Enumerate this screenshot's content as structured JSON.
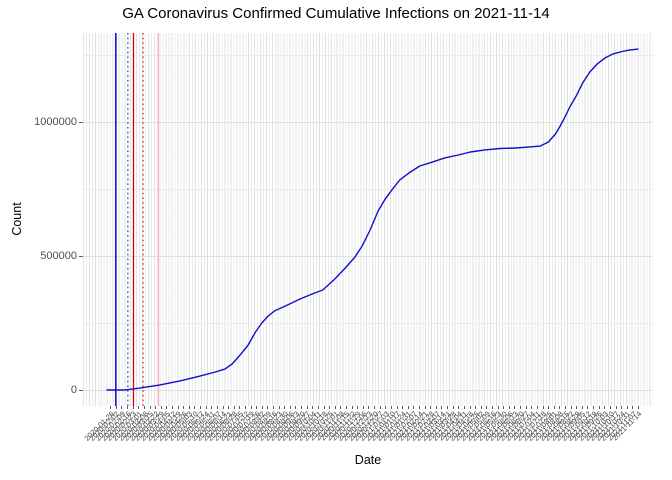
{
  "title": "GA Coronavirus Confirmed Cumulative Infections on 2021-11-14",
  "x_axis": {
    "label": "Date",
    "tick_labels": [
      "2020-01-26",
      "2020-02-02",
      "2020-02-09",
      "2020-02-16",
      "2020-02-23",
      "2020-03-01",
      "2020-03-08",
      "2020-03-15",
      "2020-03-22",
      "2020-03-29",
      "2020-04-05",
      "2020-04-12",
      "2020-04-19",
      "2020-04-26",
      "2020-05-03",
      "2020-05-10",
      "2020-05-17",
      "2020-05-24",
      "2020-05-31",
      "2020-06-07",
      "2020-06-14",
      "2020-06-21",
      "2020-06-28",
      "2020-07-05",
      "2020-07-12",
      "2020-07-19",
      "2020-07-26",
      "2020-08-02",
      "2020-08-09",
      "2020-08-16",
      "2020-08-23",
      "2020-08-30",
      "2020-09-06",
      "2020-09-13",
      "2020-09-20",
      "2020-09-27",
      "2020-10-04",
      "2020-10-11",
      "2020-10-18",
      "2020-10-25",
      "2020-11-01",
      "2020-11-08",
      "2020-11-15",
      "2020-11-22",
      "2020-11-29",
      "2020-12-06",
      "2020-12-13",
      "2020-12-20",
      "2020-12-27",
      "2021-01-03",
      "2021-01-10",
      "2021-01-17",
      "2021-01-24",
      "2021-01-31",
      "2021-02-07",
      "2021-02-14",
      "2021-02-21",
      "2021-02-28",
      "2021-03-07",
      "2021-03-14",
      "2021-03-21",
      "2021-03-28",
      "2021-04-04",
      "2021-04-11",
      "2021-04-18",
      "2021-04-25",
      "2021-05-02",
      "2021-05-09",
      "2021-05-16",
      "2021-05-23",
      "2021-05-30",
      "2021-06-06",
      "2021-06-13",
      "2021-06-20",
      "2021-06-27",
      "2021-07-04",
      "2021-07-11",
      "2021-07-18",
      "2021-07-25",
      "2021-08-01",
      "2021-08-08",
      "2021-08-15",
      "2021-08-22",
      "2021-08-29",
      "2021-09-05",
      "2021-09-12",
      "2021-09-19",
      "2021-09-26",
      "2021-10-03",
      "2021-10-10",
      "2021-10-17",
      "2021-10-24",
      "2021-10-31",
      "2021-11-07",
      "2021-11-14"
    ]
  },
  "y_axis": {
    "label": "Count",
    "tick_labels": [
      "0",
      "500000",
      "1000000"
    ],
    "tick_values": [
      0,
      500000,
      1000000
    ]
  },
  "chart_data": {
    "type": "line",
    "title": "GA Coronavirus Confirmed Cumulative Infections on 2021-11-14",
    "xlabel": "Date",
    "ylabel": "Count",
    "x_domain": [
      "2020-01-22",
      "2021-11-14"
    ],
    "ylim": [
      0,
      1332000
    ],
    "grid": true,
    "legend": "none",
    "background": "#ffffff",
    "y_major_gridlines": [
      0,
      500000,
      1000000
    ],
    "y_minor_gridlines": [
      250000,
      750000,
      1250000
    ],
    "series": [
      {
        "name": "cumulative-confirmed-infections",
        "color": "#1010cb",
        "width": 1.4,
        "points": [
          [
            "2020-01-22",
            0
          ],
          [
            "2020-02-13",
            0
          ],
          [
            "2020-03-03",
            7000
          ],
          [
            "2020-03-28",
            19000
          ],
          [
            "2020-04-22",
            34000
          ],
          [
            "2020-05-17",
            52000
          ],
          [
            "2020-06-05",
            67000
          ],
          [
            "2020-06-17",
            78000
          ],
          [
            "2020-06-26",
            97000
          ],
          [
            "2020-07-06",
            131000
          ],
          [
            "2020-07-16",
            168000
          ],
          [
            "2020-07-25",
            216000
          ],
          [
            "2020-08-02",
            250000
          ],
          [
            "2020-08-10",
            276000
          ],
          [
            "2020-08-18",
            295000
          ],
          [
            "2020-08-31",
            313000
          ],
          [
            "2020-09-19",
            340000
          ],
          [
            "2020-10-07",
            362000
          ],
          [
            "2020-10-17",
            373000
          ],
          [
            "2020-11-01",
            414000
          ],
          [
            "2020-11-14",
            455000
          ],
          [
            "2020-11-26",
            496000
          ],
          [
            "2020-12-05",
            537000
          ],
          [
            "2020-12-15",
            597000
          ],
          [
            "2020-12-25",
            668000
          ],
          [
            "2021-01-03",
            713000
          ],
          [
            "2021-01-11",
            746000
          ],
          [
            "2021-01-21",
            784000
          ],
          [
            "2021-02-03",
            813000
          ],
          [
            "2021-02-15",
            836000
          ],
          [
            "2021-03-03",
            851000
          ],
          [
            "2021-03-18",
            866000
          ],
          [
            "2021-04-04",
            877000
          ],
          [
            "2021-04-19",
            888000
          ],
          [
            "2021-05-07",
            896000
          ],
          [
            "2021-05-26",
            901000
          ],
          [
            "2021-06-14",
            903000
          ],
          [
            "2021-07-02",
            907000
          ],
          [
            "2021-07-15",
            910000
          ],
          [
            "2021-07-25",
            925000
          ],
          [
            "2021-08-03",
            955000
          ],
          [
            "2021-08-09",
            985000
          ],
          [
            "2021-08-15",
            1019000
          ],
          [
            "2021-08-21",
            1056000
          ],
          [
            "2021-08-29",
            1097000
          ],
          [
            "2021-09-06",
            1146000
          ],
          [
            "2021-09-15",
            1187000
          ],
          [
            "2021-09-24",
            1216000
          ],
          [
            "2021-10-04",
            1239000
          ],
          [
            "2021-10-14",
            1254000
          ],
          [
            "2021-10-25",
            1263000
          ],
          [
            "2021-11-04",
            1269000
          ],
          [
            "2021-11-14",
            1272000
          ]
        ]
      }
    ],
    "vlines": [
      {
        "date": "2020-02-02",
        "style": "solid",
        "color": "#1010cb",
        "width": 1.6
      },
      {
        "date": "2020-02-17",
        "style": "dotted",
        "color": "#2222cc",
        "width": 1.2
      },
      {
        "date": "2020-02-24",
        "style": "solid",
        "color": "#d40000",
        "width": 1.3
      },
      {
        "date": "2020-03-07",
        "style": "dotted",
        "color": "#dc1414",
        "width": 1.2
      },
      {
        "date": "2020-03-26",
        "style": "solid",
        "color": "#ffb0c4",
        "width": 1.3
      },
      {
        "date": "2020-04-08",
        "style": "dotted",
        "color": "#ffd4de",
        "width": 1.2
      }
    ]
  }
}
